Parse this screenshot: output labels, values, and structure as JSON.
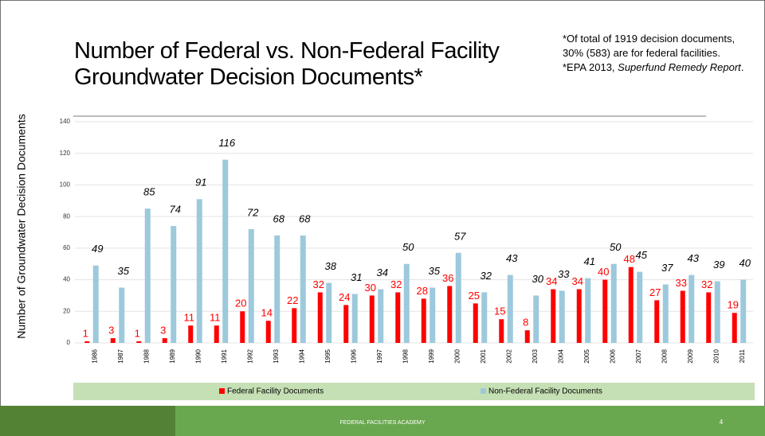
{
  "slide": {
    "title": "Number of Federal vs. Non-Federal Facility Groundwater Decision Documents*",
    "note1": "*Of total of 1919 decision documents, 30% (583) are for federal facilities.",
    "note2_prefix": "*EPA 2013, ",
    "note2_italic": "Superfund Remedy Report",
    "note2_suffix": ".",
    "footer": "FEDERAL FACILITIES ACADEMY",
    "page_number": "4"
  },
  "chart_data": {
    "type": "bar",
    "ylabel": "Number of Groundwater Decision Documents",
    "categories": [
      "1986",
      "1987",
      "1988",
      "1989",
      "1990",
      "1991",
      "1992",
      "1993",
      "1994",
      "1995",
      "1996",
      "1997",
      "1998",
      "1999",
      "2000",
      "2001",
      "2002",
      "2003",
      "2004",
      "2005",
      "2006",
      "2007",
      "2008",
      "2009",
      "2010",
      "2011"
    ],
    "series": [
      {
        "name": "Federal Facility Documents",
        "color": "#ff0000",
        "label_color": "#ff0000",
        "values": [
          1,
          3,
          1,
          3,
          11,
          11,
          20,
          14,
          22,
          32,
          24,
          30,
          32,
          28,
          36,
          25,
          15,
          8,
          34,
          34,
          40,
          48,
          27,
          33,
          32,
          19
        ]
      },
      {
        "name": "Non-Federal Facility Documents",
        "color": "#9dc9dc",
        "label_color": "#000000",
        "values": [
          49,
          35,
          85,
          74,
          91,
          116,
          72,
          68,
          68,
          38,
          31,
          34,
          50,
          35,
          57,
          32,
          43,
          30,
          33,
          41,
          50,
          45,
          37,
          43,
          39,
          40
        ]
      }
    ],
    "ylim": [
      0,
      140
    ],
    "yticks": [
      0,
      20,
      40,
      60,
      80,
      100,
      120,
      140
    ],
    "grid": true,
    "legend": "bottom"
  }
}
